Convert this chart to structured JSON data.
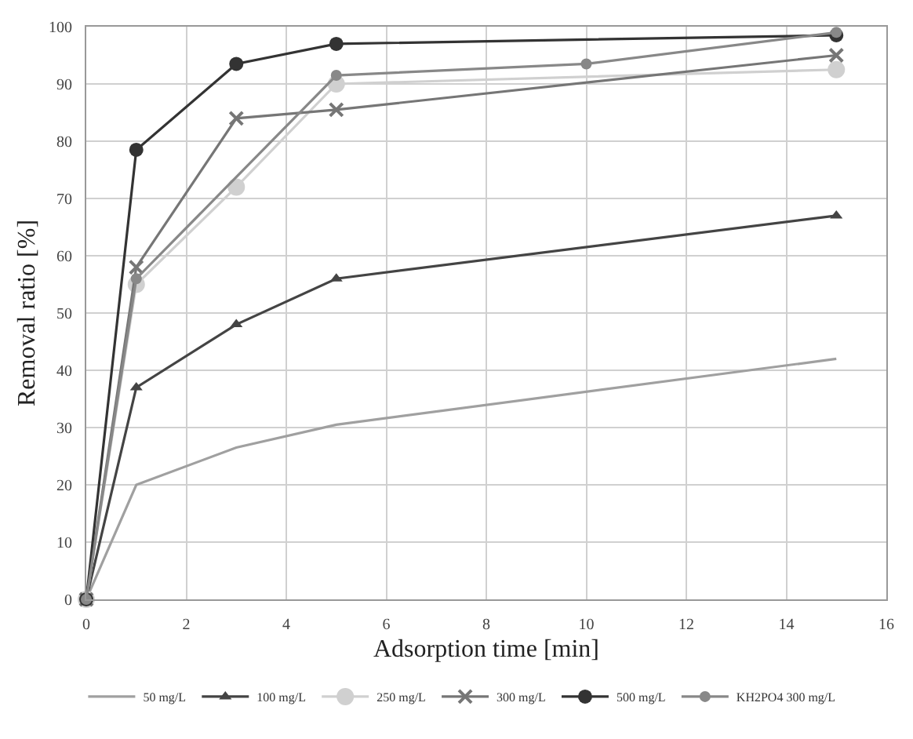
{
  "chart_data": {
    "type": "line",
    "xlabel": "Adsorption time [min]",
    "ylabel": "Removal ratio [%]",
    "xlim": [
      0,
      16
    ],
    "xticks": [
      0,
      2,
      4,
      6,
      8,
      10,
      12,
      14,
      16
    ],
    "ylim": [
      0,
      100
    ],
    "yticks": [
      0,
      10,
      20,
      30,
      40,
      50,
      60,
      70,
      80,
      90,
      100
    ],
    "grid": true,
    "legend": "bottom",
    "series": [
      {
        "name": "50 mg/L",
        "color": "#a0a0a0",
        "marker": "none",
        "x": [
          0,
          1,
          3,
          5,
          15
        ],
        "values": [
          0,
          20,
          26.5,
          30.5,
          42
        ]
      },
      {
        "name": "100 mg/L",
        "color": "#444444",
        "marker": "triangle",
        "x": [
          0,
          1,
          3,
          5,
          15
        ],
        "values": [
          0,
          37,
          48,
          56,
          67
        ]
      },
      {
        "name": "250 mg/L",
        "color": "#d0d0d0",
        "marker": "circle",
        "x": [
          0,
          1,
          3,
          5,
          15
        ],
        "values": [
          0,
          55,
          72,
          90,
          92.5
        ]
      },
      {
        "name": "300 mg/L",
        "color": "#767676",
        "marker": "cross",
        "x": [
          0,
          1,
          3,
          5,
          15
        ],
        "values": [
          0,
          58,
          84,
          85.5,
          95
        ]
      },
      {
        "name": "500 mg/L",
        "color": "#333333",
        "marker": "circle",
        "x": [
          0,
          1,
          3,
          5,
          15
        ],
        "values": [
          0,
          78.5,
          93.5,
          97,
          98.5
        ]
      },
      {
        "name": "KH2PO4 300 mg/L",
        "color": "#888888",
        "marker": "circle",
        "x": [
          0,
          1,
          5,
          10,
          15
        ],
        "values": [
          0,
          56,
          91.5,
          93.5,
          99
        ]
      }
    ]
  }
}
